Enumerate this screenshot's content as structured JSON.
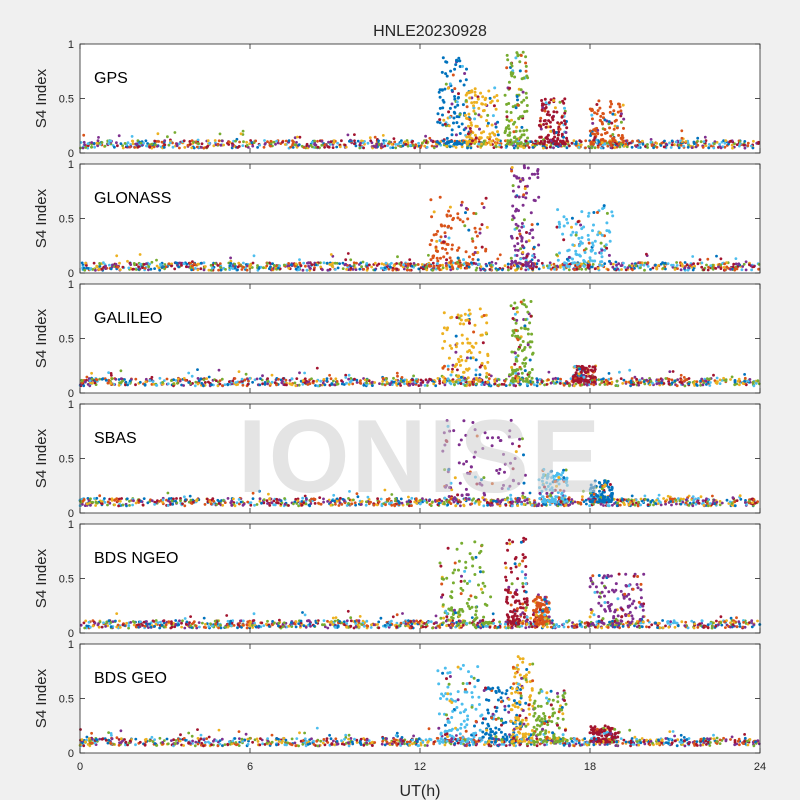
{
  "chart_data": {
    "type": "scatter",
    "title": "HNLE20230928",
    "xlabel": "UT(h)",
    "ylabel": "S4 Index",
    "xlim": [
      0,
      24
    ],
    "ylim": [
      0,
      1
    ],
    "x_ticks": [
      "0",
      "6",
      "12",
      "18",
      "24"
    ],
    "y_ticks": [
      "0",
      "0.5",
      "1"
    ],
    "watermark": "IONISE",
    "grid": false,
    "legend": "none",
    "series_colors": [
      "#0072BD",
      "#D95319",
      "#EDB120",
      "#7E2F8E",
      "#77AC30",
      "#4DBEEE",
      "#A2142F"
    ],
    "panels": [
      {
        "name": "GPS",
        "baseline": 0.08,
        "bursts": [
          {
            "x0": 12.6,
            "x1": 13.8,
            "peak": 0.88
          },
          {
            "x0": 13.6,
            "x1": 14.8,
            "peak": 0.6
          },
          {
            "x0": 15.0,
            "x1": 15.8,
            "peak": 0.93
          },
          {
            "x0": 16.2,
            "x1": 17.2,
            "peak": 0.5
          },
          {
            "x0": 18.0,
            "x1": 19.2,
            "peak": 0.48
          }
        ]
      },
      {
        "name": "GLONASS",
        "baseline": 0.06,
        "bursts": [
          {
            "x0": 12.3,
            "x1": 14.4,
            "peak": 0.7
          },
          {
            "x0": 15.2,
            "x1": 16.2,
            "peak": 1.0
          },
          {
            "x0": 16.8,
            "x1": 18.8,
            "peak": 0.62
          }
        ]
      },
      {
        "name": "GALILEO",
        "baseline": 0.1,
        "bursts": [
          {
            "x0": 12.8,
            "x1": 14.4,
            "peak": 0.78
          },
          {
            "x0": 15.2,
            "x1": 16.0,
            "peak": 0.88
          },
          {
            "x0": 17.4,
            "x1": 18.2,
            "peak": 0.25
          }
        ]
      },
      {
        "name": "SBAS",
        "baseline": 0.1,
        "bursts": [
          {
            "x0": 12.8,
            "x1": 15.8,
            "peak": 0.85
          },
          {
            "x0": 16.2,
            "x1": 17.2,
            "peak": 0.4
          },
          {
            "x0": 18.0,
            "x1": 18.8,
            "peak": 0.3
          }
        ]
      },
      {
        "name": "BDS NGEO",
        "baseline": 0.08,
        "bursts": [
          {
            "x0": 12.7,
            "x1": 14.5,
            "peak": 0.85
          },
          {
            "x0": 15.0,
            "x1": 15.8,
            "peak": 0.88
          },
          {
            "x0": 16.0,
            "x1": 16.6,
            "peak": 0.35
          },
          {
            "x0": 18.0,
            "x1": 19.9,
            "peak": 0.55
          }
        ]
      },
      {
        "name": "BDS GEO",
        "baseline": 0.1,
        "bursts": [
          {
            "x0": 12.6,
            "x1": 14.2,
            "peak": 0.83
          },
          {
            "x0": 14.2,
            "x1": 15.6,
            "peak": 0.62
          },
          {
            "x0": 15.2,
            "x1": 16.0,
            "peak": 0.9
          },
          {
            "x0": 16.0,
            "x1": 17.2,
            "peak": 0.6
          },
          {
            "x0": 18.0,
            "x1": 19.0,
            "peak": 0.25
          }
        ]
      }
    ]
  }
}
